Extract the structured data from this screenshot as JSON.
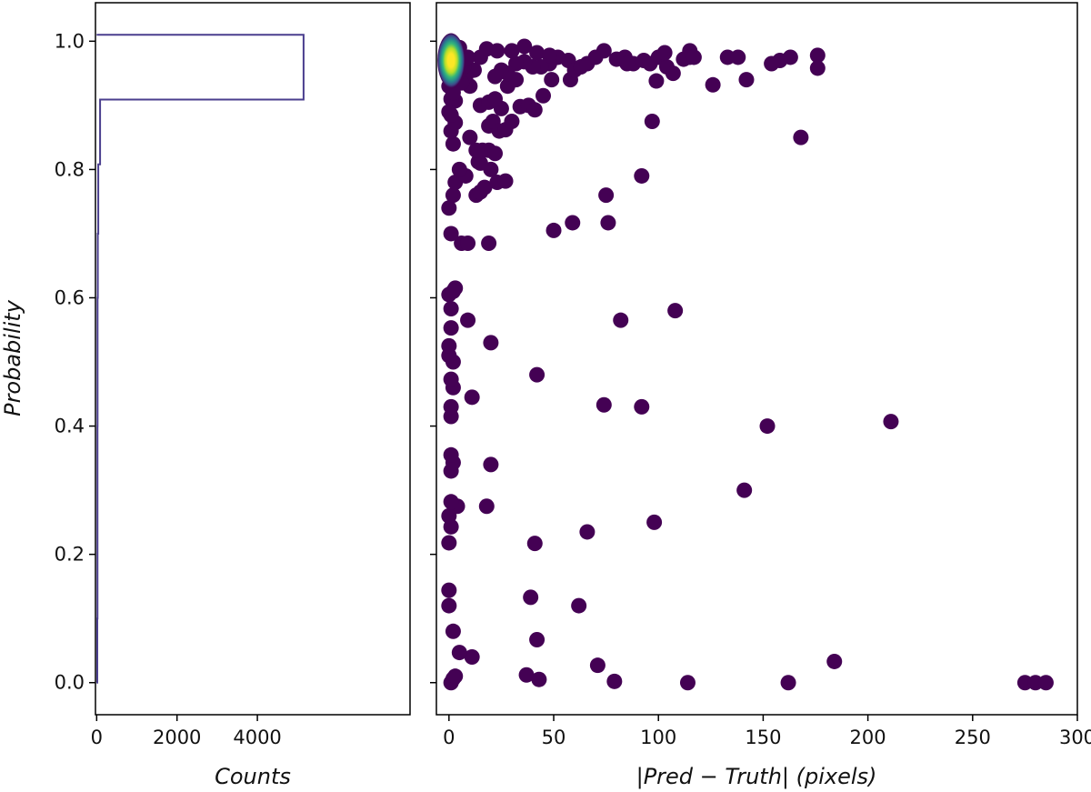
{
  "chart_data": [
    {
      "type": "histogram",
      "orientation": "horizontal",
      "xlabel": "Counts",
      "ylabel": "Probability",
      "xlim": [
        -30,
        7800
      ],
      "ylim": [
        -0.05,
        1.06
      ],
      "xticks": [
        0,
        2000,
        4000
      ],
      "yticks": [
        0.0,
        0.2,
        0.4,
        0.6,
        0.8,
        1.0
      ],
      "line_color": "#4a3e8e",
      "bins": [
        {
          "p0": 0.0,
          "p1": 0.1,
          "count": 15
        },
        {
          "p0": 0.1,
          "p1": 0.2,
          "count": 20
        },
        {
          "p0": 0.2,
          "p1": 0.3,
          "count": 20
        },
        {
          "p0": 0.3,
          "p1": 0.4,
          "count": 20
        },
        {
          "p0": 0.4,
          "p1": 0.5,
          "count": 22
        },
        {
          "p0": 0.5,
          "p1": 0.6,
          "count": 22
        },
        {
          "p0": 0.6,
          "p1": 0.7,
          "count": 28
        },
        {
          "p0": 0.7,
          "p1": 0.808,
          "count": 40
        },
        {
          "p0": 0.808,
          "p1": 0.909,
          "count": 85
        },
        {
          "p0": 0.909,
          "p1": 1.01,
          "count": 5150
        }
      ]
    },
    {
      "type": "scatter",
      "xlabel": "|Pred − Truth| (pixels)",
      "ylabel": "",
      "xlim": [
        -6,
        300
      ],
      "ylim": [
        -0.05,
        1.06
      ],
      "xticks": [
        0,
        50,
        100,
        150,
        200,
        250,
        300
      ],
      "yticks": [
        0.0,
        0.2,
        0.4,
        0.6,
        0.8,
        1.0
      ],
      "colormap": "viridis",
      "colors": {
        "low": "#440154",
        "high": "#fde725"
      },
      "points": [
        [
          275,
          0.0
        ],
        [
          280,
          0.0
        ],
        [
          285,
          0.0
        ],
        [
          184,
          0.033
        ],
        [
          211,
          0.407
        ],
        [
          152,
          0.4
        ],
        [
          141,
          0.3
        ],
        [
          168,
          0.85
        ],
        [
          176,
          0.978
        ],
        [
          176,
          0.958
        ],
        [
          163,
          0.975
        ],
        [
          158,
          0.97
        ],
        [
          154,
          0.965
        ],
        [
          142,
          0.94
        ],
        [
          133,
          0.975
        ],
        [
          138,
          0.975
        ],
        [
          126,
          0.932
        ],
        [
          115,
          0.985
        ],
        [
          115,
          0.975
        ],
        [
          112,
          0.972
        ],
        [
          117,
          0.975
        ],
        [
          108,
          0.58
        ],
        [
          98,
          0.25
        ],
        [
          97,
          0.875
        ],
        [
          99,
          0.938
        ],
        [
          92,
          0.79
        ],
        [
          92,
          0.43
        ],
        [
          82,
          0.565
        ],
        [
          76,
          0.717
        ],
        [
          75,
          0.76
        ],
        [
          74,
          0.433
        ],
        [
          71,
          0.027
        ],
        [
          66,
          0.235
        ],
        [
          62,
          0.12
        ],
        [
          59,
          0.717
        ],
        [
          50,
          0.705
        ],
        [
          42,
          0.48
        ],
        [
          41,
          0.217
        ],
        [
          42,
          0.067
        ],
        [
          39,
          0.133
        ],
        [
          37,
          0.012
        ],
        [
          43,
          0.005
        ],
        [
          79,
          0.002
        ],
        [
          114,
          0.0
        ],
        [
          162,
          0.0
        ],
        [
          11,
          0.445
        ],
        [
          20,
          0.53
        ],
        [
          20,
          0.34
        ],
        [
          18,
          0.275
        ],
        [
          9,
          0.565
        ],
        [
          3,
          0.615
        ],
        [
          4,
          0.275
        ],
        [
          11,
          0.04
        ],
        [
          5,
          0.047
        ],
        [
          2,
          0.006
        ],
        [
          1,
          0.0
        ],
        [
          3,
          0.01
        ],
        [
          2,
          0.08
        ],
        [
          0,
          0.12
        ],
        [
          0,
          0.144
        ],
        [
          0,
          0.218
        ],
        [
          1,
          0.243
        ],
        [
          0,
          0.26
        ],
        [
          1,
          0.282
        ],
        [
          1,
          0.33
        ],
        [
          2,
          0.343
        ],
        [
          1,
          0.355
        ],
        [
          1,
          0.415
        ],
        [
          1,
          0.43
        ],
        [
          2,
          0.46
        ],
        [
          1,
          0.473
        ],
        [
          2,
          0.5
        ],
        [
          0,
          0.51
        ],
        [
          0,
          0.525
        ],
        [
          1,
          0.553
        ],
        [
          1,
          0.583
        ],
        [
          0,
          0.605
        ],
        [
          2,
          0.61
        ],
        [
          6,
          0.685
        ],
        [
          9,
          0.685
        ],
        [
          19,
          0.685
        ],
        [
          1,
          0.7
        ],
        [
          0,
          0.74
        ],
        [
          2,
          0.76
        ],
        [
          3,
          0.78
        ],
        [
          8,
          0.79
        ],
        [
          5,
          0.8
        ],
        [
          13,
          0.76
        ],
        [
          15,
          0.765
        ],
        [
          17,
          0.772
        ],
        [
          20,
          0.8
        ],
        [
          23,
          0.78
        ],
        [
          27,
          0.782
        ],
        [
          15,
          0.81
        ],
        [
          16,
          0.83
        ],
        [
          19,
          0.83
        ],
        [
          14,
          0.812
        ],
        [
          22,
          0.825
        ],
        [
          2,
          0.84
        ],
        [
          1,
          0.86
        ],
        [
          3,
          0.873
        ],
        [
          10,
          0.85
        ],
        [
          13,
          0.83
        ],
        [
          19,
          0.868
        ],
        [
          21,
          0.875
        ],
        [
          24,
          0.86
        ],
        [
          27,
          0.862
        ],
        [
          30,
          0.875
        ],
        [
          34,
          0.898
        ],
        [
          38,
          0.9
        ],
        [
          41,
          0.893
        ],
        [
          45,
          0.915
        ],
        [
          49,
          0.94
        ],
        [
          25,
          0.895
        ],
        [
          15,
          0.9
        ],
        [
          19,
          0.905
        ],
        [
          22,
          0.91
        ],
        [
          28,
          0.93
        ],
        [
          32,
          0.94
        ],
        [
          1,
          0.885
        ],
        [
          3,
          0.907
        ],
        [
          1,
          0.93
        ],
        [
          58,
          0.94
        ],
        [
          57,
          0.97
        ],
        [
          60,
          0.955
        ],
        [
          63,
          0.96
        ],
        [
          66,
          0.965
        ],
        [
          70,
          0.975
        ],
        [
          74,
          0.985
        ],
        [
          80,
          0.972
        ],
        [
          84,
          0.975
        ],
        [
          88,
          0.965
        ],
        [
          93,
          0.97
        ],
        [
          96,
          0.965
        ],
        [
          100,
          0.975
        ],
        [
          104,
          0.96
        ],
        [
          107,
          0.95
        ],
        [
          103,
          0.982
        ],
        [
          85,
          0.965
        ],
        [
          52,
          0.975
        ],
        [
          48,
          0.965
        ],
        [
          44,
          0.96
        ],
        [
          40,
          0.96
        ],
        [
          36,
          0.968
        ],
        [
          32,
          0.965
        ],
        [
          28,
          0.95
        ],
        [
          25,
          0.955
        ],
        [
          22,
          0.945
        ],
        [
          12,
          0.955
        ],
        [
          15,
          0.975
        ],
        [
          18,
          0.988
        ],
        [
          23,
          0.985
        ],
        [
          30,
          0.985
        ],
        [
          36,
          0.992
        ],
        [
          42,
          0.982
        ],
        [
          48,
          0.978
        ],
        [
          10,
          0.93
        ],
        [
          8,
          0.945
        ],
        [
          6,
          0.935
        ],
        [
          7,
          0.96
        ],
        [
          9,
          0.975
        ],
        [
          5,
          0.99
        ],
        [
          2,
          0.97
        ],
        [
          3,
          0.985
        ],
        [
          1,
          0.98
        ],
        [
          0,
          0.97
        ],
        [
          2,
          0.96
        ],
        [
          1,
          0.955
        ],
        [
          0,
          0.95
        ],
        [
          4,
          0.95
        ],
        [
          0,
          0.93
        ],
        [
          1,
          0.91
        ],
        [
          2,
          0.92
        ],
        [
          0,
          0.89
        ]
      ],
      "density_peak": {
        "x": 1,
        "y": 0.97
      }
    }
  ]
}
